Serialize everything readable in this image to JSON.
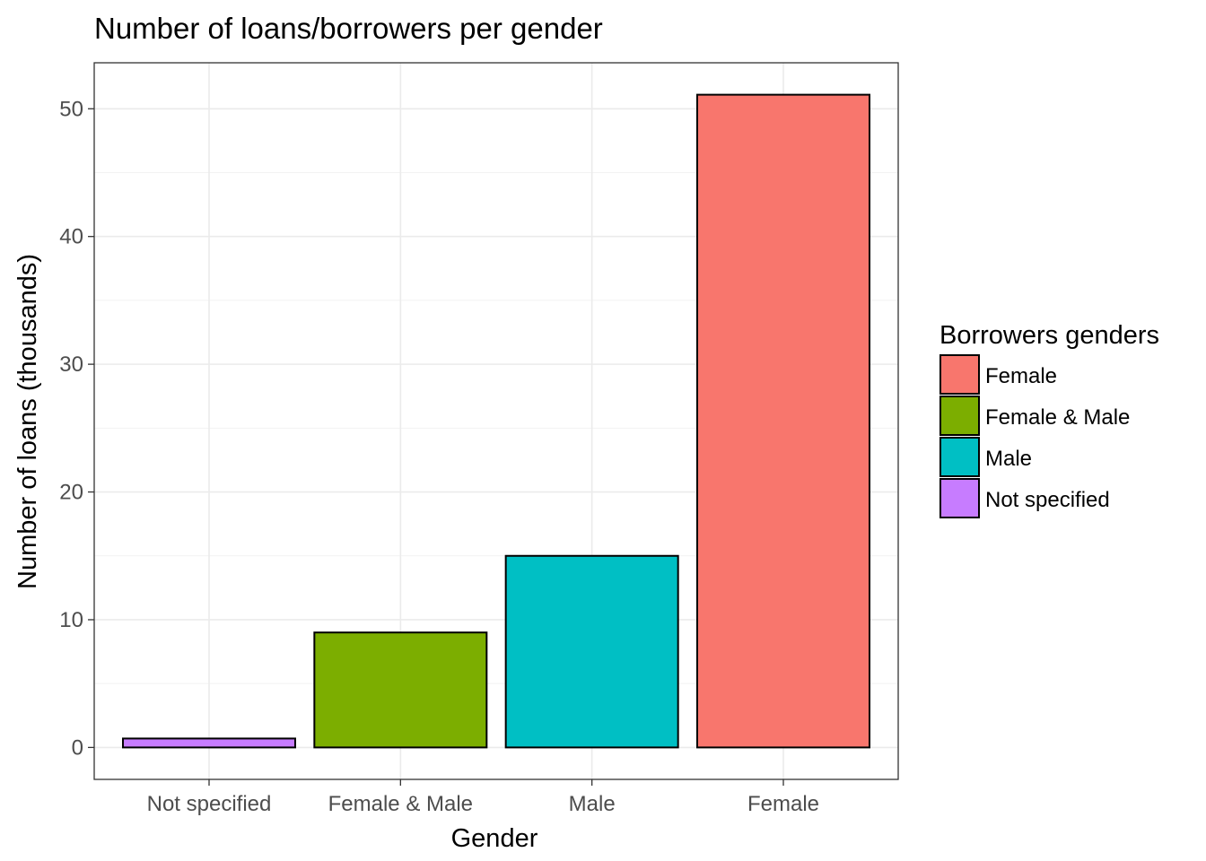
{
  "chart_data": {
    "type": "bar",
    "title": "Number of loans/borrowers per gender",
    "xlabel": "Gender",
    "ylabel": "Number of loans (thousands)",
    "categories": [
      "Not specified",
      "Female & Male",
      "Male",
      "Female"
    ],
    "values": [
      0.7,
      9.0,
      15.0,
      51.1
    ],
    "bar_colors": [
      "#C77CFF",
      "#7CAE00",
      "#00BFC4",
      "#F8766D"
    ],
    "ylim": [
      -2.5,
      53.6
    ],
    "yticks": [
      0,
      10,
      20,
      30,
      40,
      50
    ],
    "grid": true,
    "legend": {
      "title": "Borrowers genders",
      "position": "right",
      "items": [
        {
          "label": "Female",
          "color": "#F8766D"
        },
        {
          "label": "Female & Male",
          "color": "#7CAE00"
        },
        {
          "label": "Male",
          "color": "#00BFC4"
        },
        {
          "label": "Not specified",
          "color": "#C77CFF"
        }
      ]
    }
  }
}
